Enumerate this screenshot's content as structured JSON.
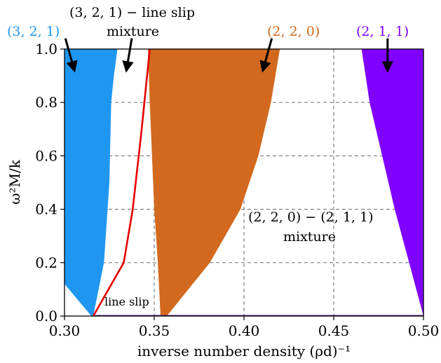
{
  "chart_data": {
    "type": "area",
    "title": "",
    "xlabel": "inverse number density (ρd)⁻¹",
    "ylabel": "ω²M/k",
    "xlim": [
      0.3,
      0.5
    ],
    "ylim": [
      0.0,
      1.0
    ],
    "xticks": [
      0.3,
      0.35,
      0.4,
      0.45,
      0.5
    ],
    "xtick_labels": [
      "0.30",
      "0.35",
      "0.40",
      "0.45",
      "0.50"
    ],
    "yticks": [
      0.0,
      0.2,
      0.4,
      0.6,
      0.8,
      1.0
    ],
    "ytick_labels": [
      "0.0",
      "0.2",
      "0.4",
      "0.6",
      "0.8",
      "1.0"
    ],
    "grid": true,
    "regions": [
      {
        "label": "(3, 2, 1)",
        "color": "#1f97f0",
        "left": [
          [
            0.3,
            1.0
          ],
          [
            0.3,
            0.12
          ],
          [
            0.315,
            0.0
          ]
        ],
        "right": [
          [
            0.316,
            0.0
          ],
          [
            0.322,
            0.2
          ],
          [
            0.325,
            0.5
          ],
          [
            0.326,
            0.8
          ],
          [
            0.3275,
            0.9
          ],
          [
            0.3295,
            1.0
          ]
        ]
      },
      {
        "label": "(2, 2, 0)",
        "color": "#d2691e",
        "left": [
          [
            0.3465,
            1.0
          ],
          [
            0.3475,
            0.8
          ],
          [
            0.35,
            0.4
          ],
          [
            0.352,
            0.2
          ],
          [
            0.3535,
            0.0
          ]
        ],
        "right": [
          [
            0.357,
            0.0
          ],
          [
            0.381,
            0.2
          ],
          [
            0.398,
            0.4
          ],
          [
            0.408,
            0.6
          ],
          [
            0.415,
            0.8
          ],
          [
            0.4175,
            0.9
          ],
          [
            0.42,
            1.0
          ]
        ]
      },
      {
        "label": "(2, 1, 1)",
        "color": "#8000ff",
        "left": [
          [
            0.4655,
            1.0
          ],
          [
            0.47,
            0.8
          ],
          [
            0.477,
            0.6
          ],
          [
            0.484,
            0.4
          ],
          [
            0.492,
            0.2
          ],
          [
            0.5,
            0.0
          ]
        ],
        "right": [
          [
            0.501,
            0.0
          ],
          [
            0.501,
            1.0
          ]
        ]
      }
    ],
    "line_slip_curve": {
      "color": "#e60000",
      "points": [
        [
          0.316,
          0.0
        ],
        [
          0.333,
          0.2
        ],
        [
          0.338,
          0.4
        ],
        [
          0.343,
          0.7
        ],
        [
          0.3475,
          1.0
        ]
      ]
    },
    "bottom_line": {
      "color": "#5a1e8c",
      "points": [
        [
          0.316,
          0.0
        ],
        [
          0.5,
          0.0
        ]
      ]
    },
    "annotations": {
      "label_321": "(3, 2, 1)",
      "label_line_slip_top": "(3, 2, 1) − line slip",
      "label_mixture_top": "mixture",
      "label_220": "(2, 2, 0)",
      "label_211": "(2, 1, 1)",
      "label_mix_220_211": "(2, 2, 0) − (2, 1, 1)",
      "label_mixture_bottom": "mixture",
      "label_line_slip": "line slip"
    },
    "arrows": [
      {
        "from": [
          0.3005,
          1.04
        ],
        "to": [
          0.3055,
          0.92
        ]
      },
      {
        "from": [
          0.3375,
          1.04
        ],
        "to": [
          0.3345,
          0.92
        ]
      },
      {
        "from": [
          0.4155,
          1.04
        ],
        "to": [
          0.4105,
          0.92
        ]
      },
      {
        "from": [
          0.48,
          1.04
        ],
        "to": [
          0.48,
          0.92
        ]
      }
    ],
    "colors": {
      "label_321": "#1f97f0",
      "label_220": "#d2691e",
      "label_211": "#8000ff"
    }
  }
}
